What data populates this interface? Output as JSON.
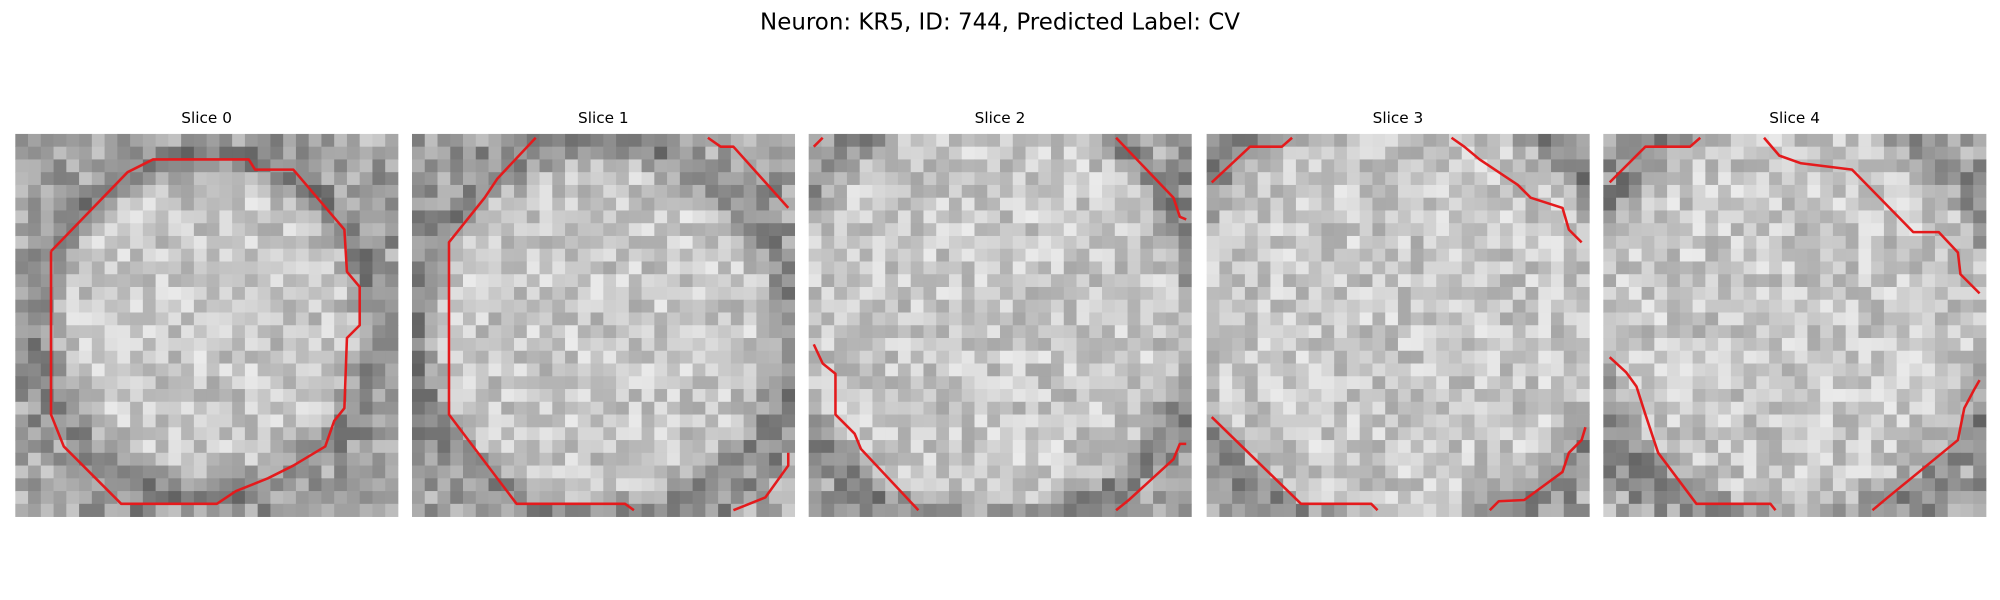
{
  "title": "Neuron: KR5, ID: 744, Predicted Label: CV",
  "panels": [
    {
      "title": "Slice 0"
    },
    {
      "title": "Slice 1"
    },
    {
      "title": "Slice 2"
    },
    {
      "title": "Slice 3"
    },
    {
      "title": "Slice 4"
    }
  ]
}
